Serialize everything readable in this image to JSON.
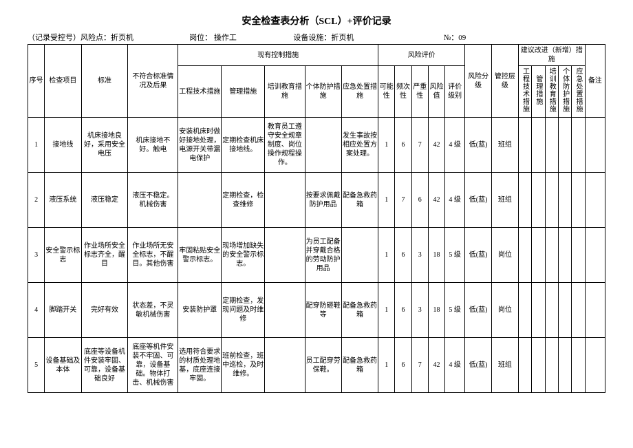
{
  "title": "安全检查表分析（SCL）+评价记录",
  "meta": {
    "record": "（记录受控号）风险点：折页机",
    "post_label": "岗位：",
    "post_value": "操作工",
    "equip_label": "设备设施：折页机",
    "no_label": "№：09"
  },
  "headers": {
    "seq": "序号",
    "item": "检查项目",
    "standard": "标准",
    "nonconf": "不符合标准情况及后果",
    "current_group": "现有控制措施",
    "eng": "工程技术措施",
    "mgmt": "管理措施",
    "train": "培训教育措施",
    "ppe": "个体防护措施",
    "emerg": "应急处置措施",
    "risk_group": "风险评价",
    "poss": "可能性",
    "freq": "频次性",
    "sev": "严重性",
    "riskval": "风险值",
    "evalgrade": "评价级别",
    "riskgrade": "风险分级",
    "ctrl_level": "管控层级",
    "suggest_group": "建议改进（新增）措施",
    "s_eng": "工程技术措施",
    "s_mgmt": "管理措施",
    "s_train": "培训教育措施",
    "s_ppe": "个体防护措施",
    "s_emerg": "应急处置措施",
    "remark": "备注"
  },
  "rows": [
    {
      "seq": "1",
      "item": "接地线",
      "standard": "机床接地良好，采用安全电压",
      "nonconf": "机床接地不好。触电",
      "eng": "安装机床时做好接地处理，电源开关带漏电保护",
      "mgmt": "定期检查机床接地线。",
      "train": "教育员工遵守安全规章制度、岗位操作规程操作。",
      "ppe": "",
      "emerg": "发生事故按相应处置方案处理。",
      "poss": "1",
      "freq": "6",
      "sev": "7",
      "riskval": "42",
      "evalgrade": "4 级",
      "riskgrade": "低(蓝)",
      "ctrl": "班组"
    },
    {
      "seq": "2",
      "item": "液压系统",
      "standard": "液压稳定",
      "nonconf": "液压不稳定。机械伤害",
      "eng": "",
      "mgmt": "定期检查，检查维修",
      "train": "",
      "ppe": "按要求佩戴防护用品",
      "emerg": "配备急救药箱",
      "poss": "1",
      "freq": "7",
      "sev": "6",
      "riskval": "42",
      "evalgrade": "4 级",
      "riskgrade": "低(蓝)",
      "ctrl": "班组"
    },
    {
      "seq": "3",
      "item": "安全警示标志",
      "standard": "作业场所安全标志齐全，醒目",
      "nonconf": "作业场所无安全标志，不醒目。其他伤害",
      "eng": "牢固粘贴安全警示标志。",
      "mgmt": "现场增加缺失的安全警示标志。",
      "train": "",
      "ppe": "为员工配备并穿戴合格的劳动防护用品",
      "emerg": "",
      "poss": "1",
      "freq": "6",
      "sev": "3",
      "riskval": "18",
      "evalgrade": "5 级",
      "riskgrade": "低(蓝)",
      "ctrl": "岗位"
    },
    {
      "seq": "4",
      "item": "脚踏开关",
      "standard": "完好有效",
      "nonconf": "状态差，不灵敏机械伤害",
      "eng": "安装防护罩",
      "mgmt": "定期检查，发现问题及时维修",
      "train": "",
      "ppe": "配穿防砸鞋等",
      "emerg": "配备急救药箱",
      "poss": "1",
      "freq": "6",
      "sev": "3",
      "riskval": "18",
      "evalgrade": "5 级",
      "riskgrade": "低(蓝)",
      "ctrl": "岗位"
    },
    {
      "seq": "5",
      "item": "设备基础及本体",
      "standard": "底座等设备机件安装牢固、可靠，设备基础良好",
      "nonconf": "底座等机件安装不牢固、可靠，设备基础。物体打击、机械伤害",
      "eng": "选用符合要求的材质处理地基，底座连接牢固。",
      "mgmt": "班前检查，班中巡检，及时维修。",
      "train": "",
      "ppe": "员工配穿劳保鞋。",
      "emerg": "配备急救药箱",
      "poss": "1",
      "freq": "6",
      "sev": "7",
      "riskval": "42",
      "evalgrade": "4 级",
      "riskgrade": "低(蓝)",
      "ctrl": "班组"
    }
  ]
}
